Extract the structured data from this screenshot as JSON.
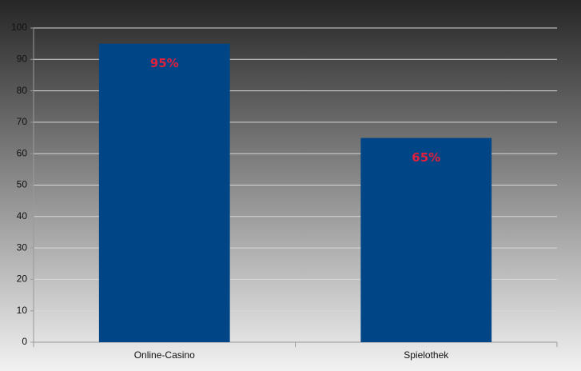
{
  "chart_data": {
    "type": "bar",
    "categories": [
      "Online-Casino",
      "Spielothek"
    ],
    "values": [
      95,
      65
    ],
    "value_labels": [
      "95%",
      "65%"
    ],
    "color": "#004586",
    "label_color": "#e0203c",
    "ylim": [
      0,
      100
    ],
    "yticks": [
      0,
      10,
      20,
      30,
      40,
      50,
      60,
      70,
      80,
      90,
      100
    ],
    "grid": true
  }
}
